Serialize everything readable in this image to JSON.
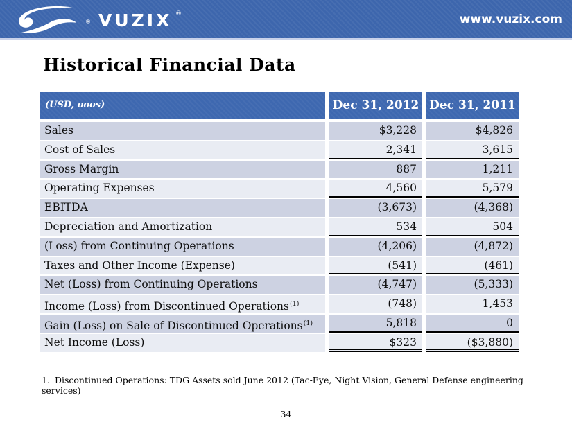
{
  "topbar": {
    "brand": "VUZIX",
    "brand_registered": "®",
    "logo_registered": "®",
    "website": "www.vuzix.com"
  },
  "title": "Historical Financial Data",
  "table": {
    "unit_label": "(USD, ooos)",
    "col_2012": "Dec 31, 2012",
    "col_2011": "Dec 31, 2011",
    "rows": [
      {
        "label": "Sales",
        "v2012": "$3,228",
        "v2011": "$4,826",
        "shade": "dark",
        "underline": "none"
      },
      {
        "label": "Cost of Sales",
        "v2012": "2,341",
        "v2011": "3,615",
        "shade": "light",
        "underline": "single"
      },
      {
        "label": "Gross Margin",
        "v2012": "887",
        "v2011": "1,211",
        "shade": "dark",
        "underline": "none"
      },
      {
        "label": "Operating Expenses",
        "v2012": "4,560",
        "v2011": "5,579",
        "shade": "light",
        "underline": "single"
      },
      {
        "label": "EBITDA",
        "v2012": "(3,673)",
        "v2011": "(4,368)",
        "shade": "dark",
        "underline": "none"
      },
      {
        "label": "Depreciation and Amortization",
        "v2012": "534",
        "v2011": "504",
        "shade": "light",
        "underline": "single"
      },
      {
        "label": "(Loss) from Continuing Operations",
        "v2012": "(4,206)",
        "v2011": "(4,872)",
        "shade": "dark",
        "underline": "none"
      },
      {
        "label": "Taxes and Other Income (Expense)",
        "v2012": "(541)",
        "v2011": "(461)",
        "shade": "light",
        "underline": "single"
      },
      {
        "label": "Net (Loss) from Continuing Operations",
        "v2012": "(4,747)",
        "v2011": "(5,333)",
        "shade": "dark",
        "underline": "none"
      },
      {
        "label": "Income (Loss) from Discontinued Operations",
        "sup": "(1)",
        "v2012": "(748)",
        "v2011": "1,453",
        "shade": "light",
        "underline": "none"
      },
      {
        "label": "Gain (Loss) on Sale of Discontinued Operations",
        "sup": "(1)",
        "v2012": "5,818",
        "v2011": "0",
        "shade": "dark",
        "underline": "single"
      },
      {
        "label": "Net Income (Loss)",
        "v2012": "$323",
        "v2011": "($3,880)",
        "shade": "light",
        "underline": "double"
      }
    ]
  },
  "footnote": {
    "number": "1.",
    "text": "Discontinued Operations: TDG Assets sold June 2012 (Tac-Eye, Night Vision, General Defense engineering services)"
  },
  "page_number": "34",
  "colors": {
    "bar_blue": "#3d66ad",
    "table_header_blue": "#3e68b0",
    "row_dark": "#cdd2e2",
    "row_light": "#e9ecf3",
    "bar_underline": "#c9d2ea"
  }
}
